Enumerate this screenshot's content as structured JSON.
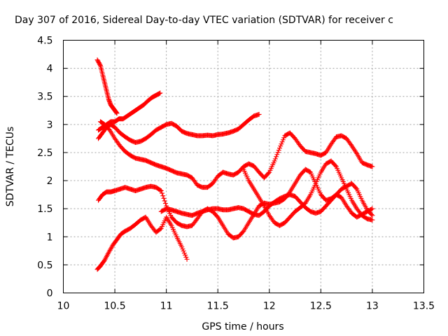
{
  "chart_data": {
    "type": "scatter",
    "title": "Day 307 of 2016, Sidereal Day-to-day VTEC variation (SDTVAR) for receiver c",
    "xlabel": "GPS time / hours",
    "ylabel": "SDTVAR / TECUs",
    "xlim": [
      10,
      13.5
    ],
    "ylim": [
      0,
      4.5
    ],
    "xticks": [
      "10",
      "10.5",
      "11",
      "11.5",
      "12",
      "12.5",
      "13",
      "13.5"
    ],
    "yticks": [
      "0",
      "0.5",
      "1",
      "1.5",
      "2",
      "2.5",
      "3",
      "3.5",
      "4",
      "4.5"
    ],
    "grid": true,
    "marker": "+",
    "marker_color": "#ff0000",
    "series": [
      {
        "x": [
          10.33,
          10.36,
          10.38,
          10.4,
          10.42,
          10.44,
          10.46,
          10.48,
          10.5,
          10.52
        ],
        "y": [
          4.15,
          4.05,
          3.9,
          3.75,
          3.6,
          3.45,
          3.35,
          3.3,
          3.25,
          3.2
        ]
      },
      {
        "x": [
          10.34,
          10.38,
          10.42,
          10.46,
          10.5,
          10.54,
          10.58,
          10.62,
          10.66,
          10.7,
          10.74,
          10.78,
          10.82,
          10.86,
          10.9,
          10.94
        ],
        "y": [
          2.9,
          2.95,
          3.0,
          3.05,
          3.05,
          3.1,
          3.1,
          3.15,
          3.2,
          3.25,
          3.3,
          3.35,
          3.42,
          3.48,
          3.52,
          3.56
        ]
      },
      {
        "x": [
          10.34,
          10.38,
          10.42,
          10.46,
          10.5,
          10.55,
          10.6,
          10.65,
          10.7,
          10.75,
          10.8,
          10.85,
          10.9,
          10.95,
          11.0,
          11.05,
          11.1,
          11.15,
          11.2,
          11.25,
          11.3,
          11.35,
          11.4,
          11.45,
          11.5,
          11.55,
          11.6,
          11.65,
          11.7,
          11.75,
          11.8,
          11.85,
          11.9
        ],
        "y": [
          2.75,
          2.85,
          2.95,
          3.0,
          2.95,
          2.85,
          2.78,
          2.72,
          2.68,
          2.7,
          2.75,
          2.82,
          2.9,
          2.95,
          3.0,
          3.02,
          2.97,
          2.88,
          2.84,
          2.82,
          2.8,
          2.8,
          2.81,
          2.8,
          2.82,
          2.83,
          2.85,
          2.88,
          2.92,
          3.0,
          3.08,
          3.15,
          3.18
        ]
      },
      {
        "x": [
          10.36,
          10.4,
          10.45,
          10.5,
          10.55,
          10.6,
          10.65,
          10.7,
          10.75,
          10.8,
          10.85,
          10.9,
          10.95,
          11.0,
          11.05,
          11.1,
          11.15,
          11.2,
          11.25,
          11.3,
          11.35,
          11.4,
          11.45,
          11.5,
          11.55,
          11.6,
          11.65,
          11.7,
          11.75,
          11.8,
          11.85,
          11.9,
          11.95,
          12.0,
          12.05,
          12.1,
          12.15,
          12.2,
          12.25,
          12.3,
          12.35,
          12.4,
          12.45,
          12.5,
          12.55,
          12.6,
          12.65,
          12.7,
          12.75,
          12.8,
          12.85,
          12.9,
          12.95,
          13.0
        ],
        "y": [
          3.05,
          3.0,
          2.9,
          2.75,
          2.62,
          2.52,
          2.45,
          2.4,
          2.38,
          2.36,
          2.32,
          2.28,
          2.25,
          2.22,
          2.18,
          2.14,
          2.12,
          2.1,
          2.05,
          1.92,
          1.88,
          1.88,
          1.95,
          2.08,
          2.15,
          2.12,
          2.1,
          2.15,
          2.25,
          2.3,
          2.26,
          2.15,
          2.05,
          2.15,
          2.35,
          2.58,
          2.8,
          2.85,
          2.75,
          2.62,
          2.52,
          2.5,
          2.48,
          2.45,
          2.5,
          2.65,
          2.78,
          2.8,
          2.75,
          2.62,
          2.48,
          2.32,
          2.28,
          2.25
        ]
      },
      {
        "x": [
          10.33,
          10.36,
          10.4,
          10.44,
          10.48,
          10.52,
          10.56,
          10.6,
          10.65,
          10.7,
          10.75,
          10.8,
          10.85,
          10.9,
          10.95,
          11.0,
          11.05,
          11.1,
          11.15,
          11.2
        ],
        "y": [
          0.42,
          0.48,
          0.58,
          0.72,
          0.85,
          0.95,
          1.05,
          1.1,
          1.15,
          1.22,
          1.3,
          1.35,
          1.2,
          1.08,
          1.15,
          1.35,
          1.2,
          1.0,
          0.82,
          0.6
        ]
      },
      {
        "x": [
          10.34,
          10.38,
          10.42,
          10.46,
          10.5,
          10.55,
          10.6,
          10.65,
          10.7,
          10.75,
          10.8,
          10.85,
          10.9,
          10.95,
          11.0,
          11.05,
          11.1,
          11.15,
          11.2,
          11.25,
          11.3,
          11.35,
          11.4,
          11.45,
          11.5,
          11.55,
          11.6,
          11.65,
          11.7,
          11.75,
          11.8,
          11.85,
          11.9,
          11.95,
          12.0,
          12.05,
          12.1,
          12.15,
          12.2,
          12.25,
          12.3,
          12.35,
          12.4,
          12.45,
          12.5,
          12.55,
          12.6,
          12.65,
          12.7,
          12.75,
          12.8,
          12.85,
          12.9,
          12.95,
          13.0
        ],
        "y": [
          1.65,
          1.75,
          1.8,
          1.8,
          1.82,
          1.85,
          1.88,
          1.85,
          1.82,
          1.85,
          1.88,
          1.9,
          1.88,
          1.82,
          1.55,
          1.35,
          1.25,
          1.2,
          1.18,
          1.2,
          1.32,
          1.45,
          1.5,
          1.45,
          1.35,
          1.2,
          1.05,
          0.98,
          1.0,
          1.1,
          1.25,
          1.4,
          1.55,
          1.6,
          1.58,
          1.6,
          1.62,
          1.68,
          1.8,
          1.95,
          2.1,
          2.2,
          2.15,
          1.95,
          1.75,
          1.65,
          1.68,
          1.75,
          1.85,
          1.9,
          1.95,
          1.85,
          1.65,
          1.48,
          1.38
        ]
      },
      {
        "x": [
          10.95,
          11.0,
          11.05,
          11.1,
          11.15,
          11.2,
          11.25,
          11.3,
          11.35,
          11.4,
          11.45,
          11.5,
          11.55,
          11.6,
          11.65,
          11.7,
          11.75,
          11.8,
          11.85,
          11.9,
          11.95,
          12.0,
          12.05,
          12.1,
          12.15,
          12.2,
          12.25,
          12.3,
          12.35,
          12.4,
          12.45,
          12.5,
          12.55,
          12.6,
          12.65,
          12.7,
          12.75,
          12.8,
          12.85,
          12.9,
          12.95,
          13.0
        ],
        "y": [
          1.45,
          1.5,
          1.48,
          1.45,
          1.42,
          1.4,
          1.38,
          1.42,
          1.45,
          1.48,
          1.5,
          1.5,
          1.48,
          1.48,
          1.5,
          1.52,
          1.5,
          1.45,
          1.4,
          1.38,
          1.45,
          1.55,
          1.62,
          1.68,
          1.72,
          1.75,
          1.72,
          1.62,
          1.52,
          1.45,
          1.42,
          1.45,
          1.55,
          1.65,
          1.75,
          1.7,
          1.55,
          1.42,
          1.35,
          1.4,
          1.45,
          1.5
        ]
      },
      {
        "x": [
          11.75,
          11.8,
          11.85,
          11.9,
          11.95,
          12.0,
          12.05,
          12.1,
          12.15,
          12.2,
          12.25,
          12.3,
          12.35,
          12.4,
          12.45,
          12.5,
          12.55,
          12.6,
          12.65,
          12.7,
          12.75,
          12.8,
          12.85,
          12.9,
          12.95,
          13.0
        ],
        "y": [
          2.2,
          2.0,
          1.85,
          1.7,
          1.55,
          1.38,
          1.25,
          1.2,
          1.25,
          1.35,
          1.45,
          1.52,
          1.6,
          1.75,
          1.95,
          2.15,
          2.3,
          2.35,
          2.25,
          2.05,
          1.85,
          1.65,
          1.5,
          1.38,
          1.32,
          1.3
        ]
      }
    ]
  }
}
